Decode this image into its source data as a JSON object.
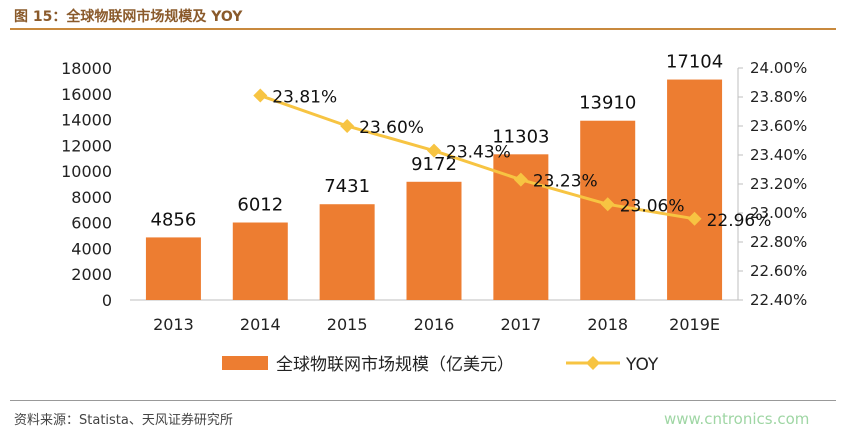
{
  "figure": {
    "title": "图 15：全球物联网市场规模及 YOY",
    "source": "资料来源：Statista、天风证券研究所",
    "watermark": "www.cntronics.com"
  },
  "colors": {
    "bar": "#ED7D31",
    "line": "#F7C442",
    "title": "#8a5a2b",
    "rule": "#c8893d"
  },
  "chart_data": {
    "type": "bar",
    "categories": [
      "2013",
      "2014",
      "2015",
      "2016",
      "2017",
      "2018",
      "2019E"
    ],
    "series": [
      {
        "name": "全球物联网市场规模（亿美元）",
        "type": "bar",
        "axis": "left",
        "values": [
          4856,
          6012,
          7431,
          9172,
          11303,
          13910,
          17104
        ],
        "labels": [
          "4856",
          "6012",
          "7431",
          "9172",
          "11303",
          "13910",
          "17104"
        ]
      },
      {
        "name": "YOY",
        "type": "line",
        "axis": "right",
        "values": [
          null,
          23.81,
          23.6,
          23.43,
          23.23,
          23.06,
          22.96
        ],
        "labels": [
          "",
          "23.81%",
          "23.60%",
          "23.43%",
          "23.23%",
          "23.06%",
          "22.96%"
        ]
      }
    ],
    "ylim": [
      0,
      18000
    ],
    "yticks": [
      "0",
      "2000",
      "4000",
      "6000",
      "8000",
      "10000",
      "12000",
      "14000",
      "16000",
      "18000"
    ],
    "y2lim": [
      22.4,
      24.0
    ],
    "y2ticks": [
      "22.40%",
      "22.60%",
      "22.80%",
      "23.00%",
      "23.20%",
      "23.40%",
      "23.60%",
      "23.80%",
      "24.00%"
    ],
    "grid": false,
    "legend": "bottom"
  }
}
